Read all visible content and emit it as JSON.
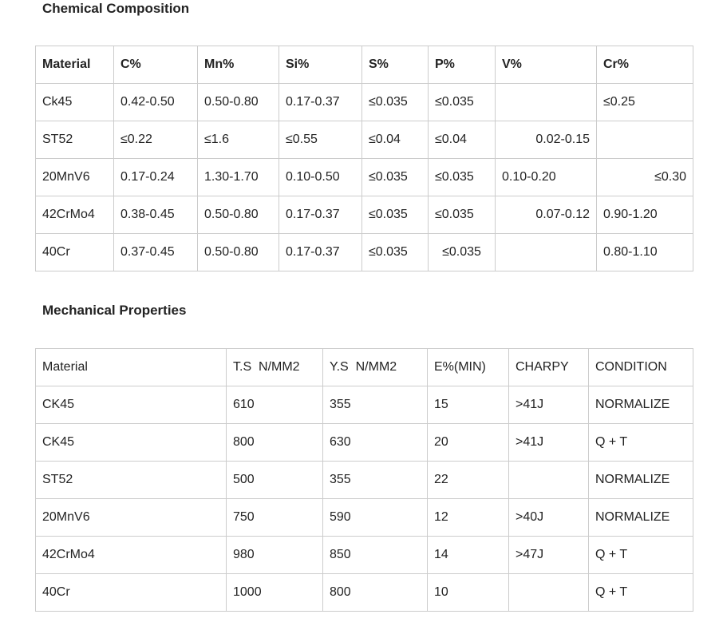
{
  "page": {
    "section1_title": "Chemical Composition",
    "section2_title": "Mechanical Properties"
  },
  "chemical_table": {
    "headers": [
      "Material",
      "C%",
      "Mn%",
      "Si%",
      "S%",
      "P%",
      "V%",
      "Cr%"
    ],
    "rows": [
      [
        "Ck45",
        "0.42-0.50",
        "0.50-0.80",
        "0.17-0.37",
        "≤0.035",
        "≤0.035",
        "",
        "≤0.25"
      ],
      [
        "ST52",
        "≤0.22",
        "≤1.6",
        "≤0.55",
        "≤0.04",
        "≤0.04",
        {
          "text": "0.02-0.15",
          "align": "right"
        },
        ""
      ],
      [
        "20MnV6",
        "0.17-0.24",
        "1.30-1.70",
        "0.10-0.50",
        "≤0.035",
        "≤0.035",
        "0.10-0.20",
        {
          "text": "≤0.30",
          "align": "right"
        }
      ],
      [
        "42CrMo4",
        "0.38-0.45",
        "0.50-0.80",
        "0.17-0.37",
        "≤0.035",
        "≤0.035",
        {
          "text": "0.07-0.12",
          "align": "right"
        },
        "0.90-1.20"
      ],
      [
        "40Cr",
        "0.37-0.45",
        "0.50-0.80",
        "0.17-0.37",
        "≤0.035",
        {
          "text": "≤0.035",
          "align": "center"
        },
        "",
        "0.80-1.10"
      ]
    ]
  },
  "mechanical_table": {
    "headers": [
      "Material",
      "T.S  N/MM2",
      "Y.S  N/MM2",
      "E%(MIN)",
      "CHARPY",
      "CONDITION"
    ],
    "rows": [
      [
        "CK45",
        "610",
        "355",
        "15",
        ">41J",
        "NORMALIZE"
      ],
      [
        "CK45",
        "800",
        "630",
        "20",
        ">41J",
        "Q + T"
      ],
      [
        "ST52",
        "500",
        "355",
        "22",
        "",
        "NORMALIZE"
      ],
      [
        "20MnV6",
        "750",
        "590",
        "12",
        ">40J",
        "NORMALIZE"
      ],
      [
        "42CrMo4",
        "980",
        "850",
        "14",
        ">47J",
        "Q + T"
      ],
      [
        "40Cr",
        "1000",
        "800",
        "10",
        "",
        "Q + T"
      ]
    ]
  }
}
